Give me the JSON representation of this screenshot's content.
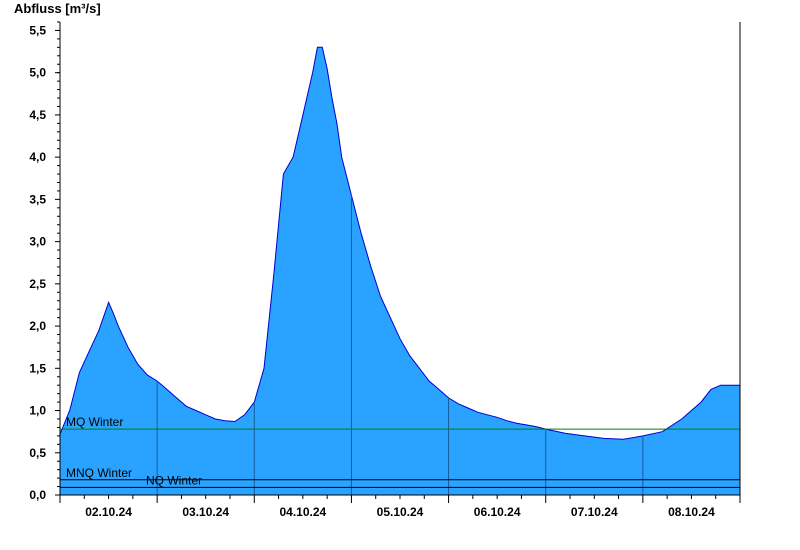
{
  "chart_data": {
    "type": "area",
    "title": "",
    "ylabel": "Abfluss [m³/s]",
    "xlabel": "",
    "ylim": [
      0,
      5.6
    ],
    "xlim": [
      0,
      7.0
    ],
    "y_ticks": [
      "0,0",
      "0,5",
      "1,0",
      "1,5",
      "2,0",
      "2,5",
      "3,0",
      "3,5",
      "4,0",
      "4,5",
      "5,0",
      "5,5"
    ],
    "x_tick_labels": [
      "02.10.24",
      "03.10.24",
      "04.10.24",
      "05.10.24",
      "06.10.24",
      "07.10.24",
      "08.10.24"
    ],
    "grid": false,
    "fill_color": "#29a3ff",
    "line_color": "#0000cc",
    "series": [
      {
        "x": [
          0.0,
          0.1,
          0.2,
          0.3,
          0.4,
          0.5,
          0.55,
          0.6,
          0.7,
          0.8,
          0.9,
          1.0,
          1.1,
          1.2,
          1.3,
          1.4,
          1.5,
          1.6,
          1.7,
          1.8,
          1.9,
          2.0,
          2.1,
          2.2,
          2.3,
          2.4,
          2.5,
          2.6,
          2.65,
          2.7,
          2.75,
          2.8,
          2.85,
          2.9,
          3.0,
          3.1,
          3.2,
          3.3,
          3.4,
          3.5,
          3.6,
          3.7,
          3.8,
          3.9,
          4.0,
          4.1,
          4.2,
          4.3,
          4.4,
          4.5,
          4.6,
          4.7,
          4.8,
          4.9,
          5.0,
          5.2,
          5.4,
          5.6,
          5.8,
          6.0,
          6.2,
          6.4,
          6.5,
          6.6,
          6.7,
          6.8,
          6.9,
          7.0
        ],
        "y": [
          0.72,
          1.0,
          1.45,
          1.7,
          1.95,
          2.28,
          2.15,
          2.0,
          1.75,
          1.55,
          1.42,
          1.35,
          1.25,
          1.15,
          1.05,
          1.0,
          0.95,
          0.9,
          0.88,
          0.87,
          0.95,
          1.1,
          1.5,
          2.6,
          3.8,
          4.0,
          4.5,
          5.0,
          5.3,
          5.3,
          5.05,
          4.7,
          4.4,
          4.0,
          3.55,
          3.1,
          2.7,
          2.35,
          2.1,
          1.85,
          1.65,
          1.5,
          1.35,
          1.25,
          1.15,
          1.08,
          1.03,
          0.98,
          0.95,
          0.92,
          0.88,
          0.85,
          0.83,
          0.81,
          0.78,
          0.73,
          0.7,
          0.67,
          0.66,
          0.7,
          0.75,
          0.9,
          1.0,
          1.1,
          1.25,
          1.3,
          1.3,
          1.3
        ]
      }
    ],
    "reference_lines": [
      {
        "label": "MQ Winter",
        "value": 0.78,
        "color": "#008000"
      },
      {
        "label": "MNQ Winter",
        "value": 0.18,
        "color": "#000000"
      },
      {
        "label": "NQ Winter",
        "value": 0.09,
        "color": "#000000"
      }
    ]
  }
}
